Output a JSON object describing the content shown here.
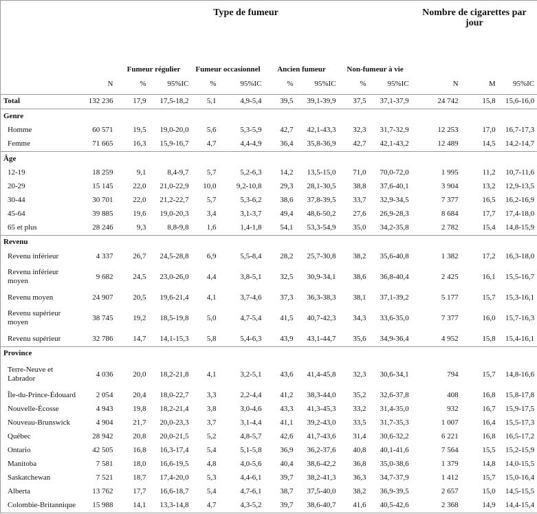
{
  "header": {
    "group_titles": [
      "Type de fumeur",
      "Nombre de cigarettes par jour"
    ],
    "subgroups": [
      "Fumeur régulier",
      "Fumeur occasionnel",
      "Ancien fumeur",
      "Non-fumeur à vie"
    ],
    "columns": [
      "N",
      "%",
      "95%IC",
      "%",
      "95%IC",
      "%",
      "95%IC",
      "%",
      "95%IC",
      "N",
      "M",
      "95%IC"
    ]
  },
  "total": {
    "label": "Total",
    "cells": [
      "132 236",
      "17,9",
      "17,5-18,2",
      "5,1",
      "4,9-5,4",
      "39,5",
      "39,1-39,9",
      "37,5",
      "37,1-37,9",
      "24 742",
      "15,8",
      "15,6-16,0"
    ]
  },
  "sections": [
    {
      "title": "Genre",
      "rows": [
        {
          "label": "Homme",
          "cells": [
            "60 571",
            "19,5",
            "19,0-20,0",
            "5,6",
            "5,3-5,9",
            "42,7",
            "42,1-43,3",
            "32,3",
            "31,7-32,9",
            "12 253",
            "17,0",
            "16,7-17,3"
          ]
        },
        {
          "label": "Femme",
          "cells": [
            "71 665",
            "16,3",
            "15,9-16,7",
            "4,7",
            "4,4-4,9",
            "36,4",
            "35,8-36,9",
            "42,7",
            "42,1-43,2",
            "12 489",
            "14,5",
            "14,2-14,7"
          ]
        }
      ]
    },
    {
      "title": "Âge",
      "rows": [
        {
          "label": "12-19",
          "cells": [
            "18 259",
            "9,1",
            "8,4-9,7",
            "5,7",
            "5,2-6,3",
            "14,2",
            "13,5-15,0",
            "71,0",
            "70,0-72,0",
            "1 995",
            "11,2",
            "10,7-11,6"
          ]
        },
        {
          "label": "20-29",
          "cells": [
            "15 145",
            "22,0",
            "21,0-22,9",
            "10,0",
            "9,2-10,8",
            "29,3",
            "28,1-30,5",
            "38,8",
            "37,6-40,1",
            "3 904",
            "13,2",
            "12,9-13,5"
          ]
        },
        {
          "label": "30-44",
          "cells": [
            "30 701",
            "22,0",
            "21,2-22,7",
            "5,7",
            "5,3-6,2",
            "38,6",
            "37,8-39,5",
            "33,7",
            "32,9-34,5",
            "7 377",
            "16,5",
            "16,2-16,9"
          ]
        },
        {
          "label": "45-64",
          "cells": [
            "39 885",
            "19,6",
            "19,0-20,3",
            "3,4",
            "3,1-3,7",
            "49,4",
            "48,6-50,2",
            "27,6",
            "26,9-28,3",
            "8 684",
            "17,7",
            "17,4-18,0"
          ]
        },
        {
          "label": "65 et plus",
          "cells": [
            "28 246",
            "9,3",
            "8,8-9,8",
            "1,6",
            "1,4-1,8",
            "54,1",
            "53,3-54,9",
            "35,0",
            "34,2-35,8",
            "2 782",
            "15,4",
            "14,8-15,9"
          ]
        }
      ]
    },
    {
      "title": "Revenu",
      "rows": [
        {
          "label": "Revenu inférieur",
          "cells": [
            "4 337",
            "26,7",
            "24,5-28,8",
            "6,9",
            "5,5-8,4",
            "28,2",
            "25,7-30,8",
            "38,2",
            "35,6-40,8",
            "1 382",
            "17,2",
            "16,3-18,0"
          ]
        },
        {
          "label": "Revenu inférieur moyen",
          "cells": [
            "9 682",
            "24,5",
            "23,0-26,0",
            "4,4",
            "3,8-5,1",
            "32,5",
            "30,9-34,1",
            "38,6",
            "36,8-40,4",
            "2 425",
            "16,1",
            "15,5-16,7"
          ]
        },
        {
          "label": "Revenu moyen",
          "cells": [
            "24 907",
            "20,5",
            "19,6-21,4",
            "4,1",
            "3,7-4,6",
            "37,3",
            "36,3-38,3",
            "38,1",
            "37,1-39,2",
            "5 177",
            "15,7",
            "15,3-16,1"
          ]
        },
        {
          "label": "Revenu supérieur moyen",
          "cells": [
            "38 745",
            "19,2",
            "18,5-19,8",
            "5,0",
            "4,7-5,4",
            "41,5",
            "40,7-42,3",
            "34,3",
            "33,6-35,0",
            "7 377",
            "16,0",
            "15,7-16,3"
          ]
        },
        {
          "label": "Revenu supérieur",
          "cells": [
            "32 786",
            "14,7",
            "14,1-15,3",
            "5,8",
            "5,4-6,3",
            "43,9",
            "43,1-44,7",
            "35,6",
            "34,9-36,4",
            "4 952",
            "15,8",
            "15,4-16,1"
          ]
        }
      ]
    },
    {
      "title": "Province",
      "rows": [
        {
          "label": "Terre-Neuve et Labrador",
          "cells": [
            "4 036",
            "20,0",
            "18,2-21,8",
            "4,1",
            "3,2-5,1",
            "43,6",
            "41,4-45,8",
            "32,3",
            "30,6-34,1",
            "794",
            "15,7",
            "14,8-16,6"
          ]
        },
        {
          "label": "Île-du-Prince-Édouard",
          "cells": [
            "2 054",
            "20,4",
            "18,0-22,7",
            "3,3",
            "2,2-4,4",
            "41,2",
            "38,3-44,0",
            "35,2",
            "32,6-37,8",
            "408",
            "16,8",
            "15,8-17,8"
          ]
        },
        {
          "label": "Nouvelle-Écosse",
          "cells": [
            "4 943",
            "19,8",
            "18,2-21,4",
            "3,8",
            "3,0-4,6",
            "43,3",
            "41,3-45,3",
            "33,2",
            "31,4-35,0",
            "932",
            "16,7",
            "15,9-17,5"
          ]
        },
        {
          "label": "Nouveau-Brunswick",
          "cells": [
            "4 904",
            "21,7",
            "20,0-23,3",
            "3,7",
            "3,1-4,4",
            "41,1",
            "39,2-43,0",
            "33,5",
            "31,7-35,3",
            "1 007",
            "16,4",
            "15,5-17,3"
          ]
        },
        {
          "label": "Québec",
          "cells": [
            "28 942",
            "20,8",
            "20,0-21,5",
            "5,2",
            "4,8-5,7",
            "42,6",
            "41,7-43,6",
            "31,4",
            "30,6-32,2",
            "6 221",
            "16,8",
            "16,5-17,2"
          ]
        },
        {
          "label": "Ontario",
          "cells": [
            "42 505",
            "16,8",
            "16,3-17,4",
            "5,4",
            "5,1-5,8",
            "36,9",
            "36,2-37,6",
            "40,8",
            "40,1-41,6",
            "7 564",
            "15,5",
            "15,2-15,9"
          ]
        },
        {
          "label": "Manitoba",
          "cells": [
            "7 581",
            "18,0",
            "16,6-19,5",
            "4,8",
            "4,0-5,6",
            "40,4",
            "38,6-42,2",
            "36,8",
            "35,0-38,6",
            "1 379",
            "14,8",
            "14,0-15,5"
          ]
        },
        {
          "label": "Saskatchewan",
          "cells": [
            "7 521",
            "18,7",
            "17,4-20,0",
            "5,3",
            "4,4-6,1",
            "39,7",
            "38,2-41,3",
            "36,3",
            "34,7-37,9",
            "1 412",
            "15,7",
            "15,0-16,4"
          ]
        },
        {
          "label": "Alberta",
          "cells": [
            "13 762",
            "17,7",
            "16,6-18,7",
            "5,4",
            "4,7-6,1",
            "38,7",
            "37,5-40,0",
            "38,2",
            "36,9-39,5",
            "2 657",
            "15,0",
            "14,5-15,5"
          ]
        },
        {
          "label": "Colombie-Britannique",
          "cells": [
            "15 988",
            "14,1",
            "13,3-14,8",
            "4,7",
            "4,3-5,2",
            "39,7",
            "38,6-40,7",
            "41,6",
            "40,5-42,6",
            "2 368",
            "14,9",
            "14,4-15,4"
          ]
        }
      ]
    }
  ]
}
